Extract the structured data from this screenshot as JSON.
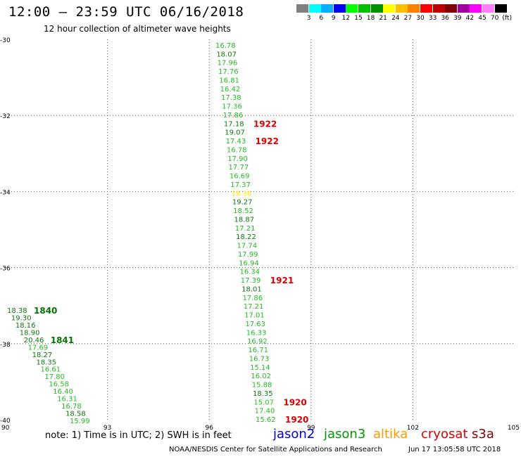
{
  "header": {
    "title": "12:00 – 23:59 UTC 06/16/2018",
    "subtitle": "12 hour collection of altimeter wave heights"
  },
  "colorbar": {
    "swatches": [
      "#808080",
      "#00ffff",
      "#00b0ff",
      "#0000ff",
      "#00ff00",
      "#00c000",
      "#009000",
      "#ffff00",
      "#ffc000",
      "#ff8000",
      "#ff0000",
      "#c00000",
      "#800000",
      "#a000a0",
      "#ff00ff",
      "#ff80ff",
      "#000000"
    ],
    "labels": [
      "3",
      "6",
      "9",
      "12",
      "15",
      "18",
      "21",
      "24",
      "27",
      "30",
      "33",
      "36",
      "39",
      "42",
      "45",
      "70",
      "(ft)"
    ]
  },
  "map": {
    "lat_labels": [
      "-30",
      "-32",
      "-34",
      "-36",
      "-38",
      "-40"
    ],
    "lon_labels": [
      "90",
      "93",
      "96",
      "99",
      "102",
      "105"
    ],
    "tracks": [
      {
        "name": "east",
        "values": [
          "16.78",
          "18.07",
          "17.96",
          "17.76",
          "16.81",
          "16.42",
          "17.38",
          "17.36",
          "17.86",
          "17.18",
          "19.07",
          "17.43",
          "16.78",
          "17.90",
          "17.77",
          "16.69",
          "17.37",
          "18.36",
          "19.27",
          "18.52",
          "18.87",
          "17.21",
          "18.22",
          "17.74",
          "17.99",
          "16.94",
          "16.34",
          "17.39",
          "18.01",
          "17.86",
          "17.21",
          "17.01",
          "17.63",
          "16.33",
          "16.92",
          "16.71",
          "16.73",
          "15.14",
          "16.02",
          "15.88",
          "18.35",
          "15.07",
          "17.40",
          "15.62"
        ],
        "colors": [
          "g",
          "d",
          "g",
          "g",
          "g",
          "g",
          "g",
          "g",
          "g",
          "d",
          "d",
          "g",
          "g",
          "g",
          "g",
          "g",
          "g",
          "y",
          "d",
          "g",
          "d",
          "g",
          "d",
          "g",
          "g",
          "g",
          "g",
          "g",
          "d",
          "g",
          "g",
          "g",
          "g",
          "g",
          "g",
          "g",
          "g",
          "g",
          "g",
          "g",
          "d",
          "g",
          "g",
          "g"
        ]
      },
      {
        "name": "west",
        "values": [
          "18.38",
          "19.30",
          "18.16",
          "18.90",
          "20.46",
          "17.69",
          "18.27",
          "18.35",
          "16.61",
          "17.80",
          "16.58",
          "16.40",
          "16.31",
          "16.78",
          "18.58",
          "15.99"
        ],
        "colors": [
          "d",
          "d",
          "d",
          "d",
          "d",
          "g",
          "d",
          "d",
          "g",
          "g",
          "g",
          "g",
          "g",
          "g",
          "d",
          "g"
        ]
      }
    ],
    "times": [
      {
        "track": "east",
        "index": 9,
        "label": "1922",
        "color": "#dd0000"
      },
      {
        "track": "east",
        "index": 11,
        "label": "1922",
        "color": "#dd0000"
      },
      {
        "track": "east",
        "index": 27,
        "label": "1921",
        "color": "#dd0000"
      },
      {
        "track": "east",
        "index": 41,
        "label": "1920",
        "color": "#dd0000"
      },
      {
        "track": "east",
        "index": 43,
        "label": "1920",
        "color": "#dd0000"
      },
      {
        "track": "west",
        "index": 0,
        "label": "1840",
        "color": "#007700"
      },
      {
        "track": "west",
        "index": 4,
        "label": "1841",
        "color": "#007700"
      }
    ]
  },
  "footer": {
    "note": "note:  1) Time is in UTC; 2) SWH is in feet",
    "satellites": [
      {
        "name": "jason2",
        "color": "#0000dd"
      },
      {
        "name": "jason3",
        "color": "#009900"
      },
      {
        "name": "altika",
        "color": "#ff9900"
      },
      {
        "name": "cryosat",
        "color": "#dd0000"
      },
      {
        "name": "s3a",
        "color": "#880000"
      }
    ],
    "credit": "NOAA/NESDIS Center for Satellite Applications and Research",
    "timestamp": "Jun 17 13:05:58 UTC 2018"
  }
}
